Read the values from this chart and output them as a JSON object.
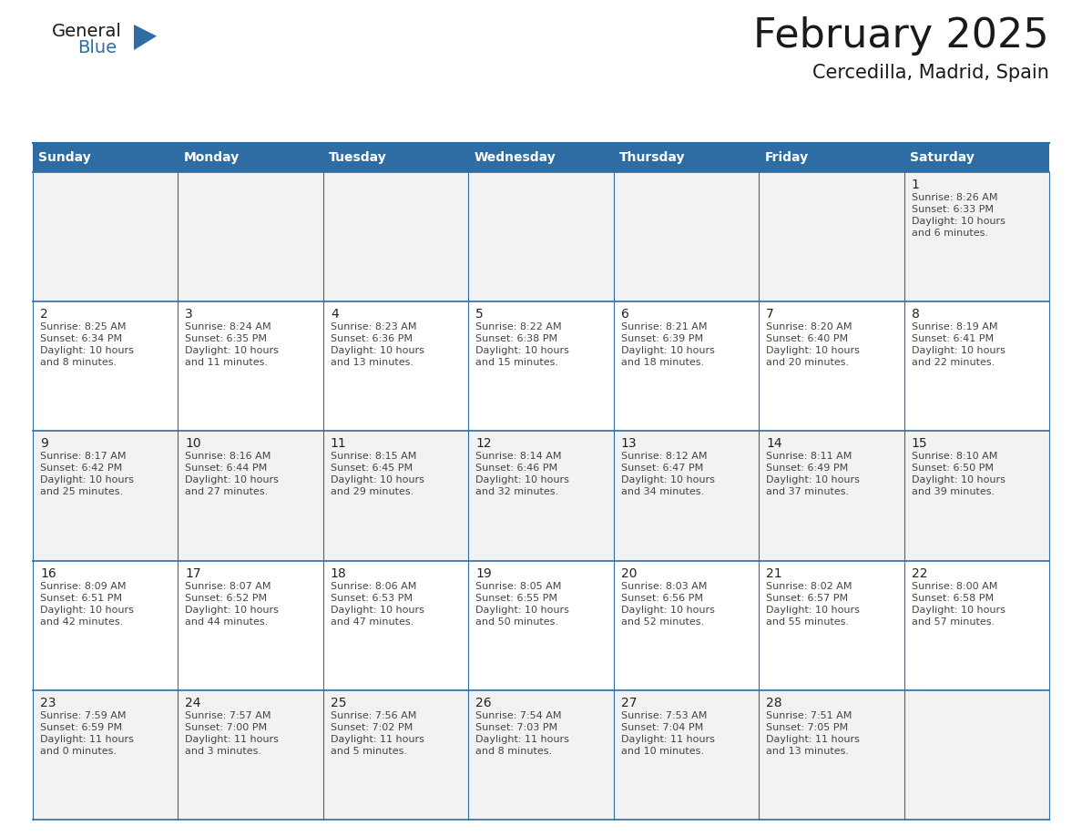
{
  "title": "February 2025",
  "subtitle": "Cercedilla, Madrid, Spain",
  "header_bg": "#2E6DA4",
  "header_text": "#FFFFFF",
  "border_color": "#2E6DA4",
  "cell_bg_light": "#F2F2F2",
  "cell_bg_white": "#FFFFFF",
  "day_names": [
    "Sunday",
    "Monday",
    "Tuesday",
    "Wednesday",
    "Thursday",
    "Friday",
    "Saturday"
  ],
  "days": [
    {
      "day": 1,
      "col": 6,
      "row": 0,
      "sunrise": "8:26 AM",
      "sunset": "6:33 PM",
      "daylight": "10 hours and 6 minutes."
    },
    {
      "day": 2,
      "col": 0,
      "row": 1,
      "sunrise": "8:25 AM",
      "sunset": "6:34 PM",
      "daylight": "10 hours and 8 minutes."
    },
    {
      "day": 3,
      "col": 1,
      "row": 1,
      "sunrise": "8:24 AM",
      "sunset": "6:35 PM",
      "daylight": "10 hours and 11 minutes."
    },
    {
      "day": 4,
      "col": 2,
      "row": 1,
      "sunrise": "8:23 AM",
      "sunset": "6:36 PM",
      "daylight": "10 hours and 13 minutes."
    },
    {
      "day": 5,
      "col": 3,
      "row": 1,
      "sunrise": "8:22 AM",
      "sunset": "6:38 PM",
      "daylight": "10 hours and 15 minutes."
    },
    {
      "day": 6,
      "col": 4,
      "row": 1,
      "sunrise": "8:21 AM",
      "sunset": "6:39 PM",
      "daylight": "10 hours and 18 minutes."
    },
    {
      "day": 7,
      "col": 5,
      "row": 1,
      "sunrise": "8:20 AM",
      "sunset": "6:40 PM",
      "daylight": "10 hours and 20 minutes."
    },
    {
      "day": 8,
      "col": 6,
      "row": 1,
      "sunrise": "8:19 AM",
      "sunset": "6:41 PM",
      "daylight": "10 hours and 22 minutes."
    },
    {
      "day": 9,
      "col": 0,
      "row": 2,
      "sunrise": "8:17 AM",
      "sunset": "6:42 PM",
      "daylight": "10 hours and 25 minutes."
    },
    {
      "day": 10,
      "col": 1,
      "row": 2,
      "sunrise": "8:16 AM",
      "sunset": "6:44 PM",
      "daylight": "10 hours and 27 minutes."
    },
    {
      "day": 11,
      "col": 2,
      "row": 2,
      "sunrise": "8:15 AM",
      "sunset": "6:45 PM",
      "daylight": "10 hours and 29 minutes."
    },
    {
      "day": 12,
      "col": 3,
      "row": 2,
      "sunrise": "8:14 AM",
      "sunset": "6:46 PM",
      "daylight": "10 hours and 32 minutes."
    },
    {
      "day": 13,
      "col": 4,
      "row": 2,
      "sunrise": "8:12 AM",
      "sunset": "6:47 PM",
      "daylight": "10 hours and 34 minutes."
    },
    {
      "day": 14,
      "col": 5,
      "row": 2,
      "sunrise": "8:11 AM",
      "sunset": "6:49 PM",
      "daylight": "10 hours and 37 minutes."
    },
    {
      "day": 15,
      "col": 6,
      "row": 2,
      "sunrise": "8:10 AM",
      "sunset": "6:50 PM",
      "daylight": "10 hours and 39 minutes."
    },
    {
      "day": 16,
      "col": 0,
      "row": 3,
      "sunrise": "8:09 AM",
      "sunset": "6:51 PM",
      "daylight": "10 hours and 42 minutes."
    },
    {
      "day": 17,
      "col": 1,
      "row": 3,
      "sunrise": "8:07 AM",
      "sunset": "6:52 PM",
      "daylight": "10 hours and 44 minutes."
    },
    {
      "day": 18,
      "col": 2,
      "row": 3,
      "sunrise": "8:06 AM",
      "sunset": "6:53 PM",
      "daylight": "10 hours and 47 minutes."
    },
    {
      "day": 19,
      "col": 3,
      "row": 3,
      "sunrise": "8:05 AM",
      "sunset": "6:55 PM",
      "daylight": "10 hours and 50 minutes."
    },
    {
      "day": 20,
      "col": 4,
      "row": 3,
      "sunrise": "8:03 AM",
      "sunset": "6:56 PM",
      "daylight": "10 hours and 52 minutes."
    },
    {
      "day": 21,
      "col": 5,
      "row": 3,
      "sunrise": "8:02 AM",
      "sunset": "6:57 PM",
      "daylight": "10 hours and 55 minutes."
    },
    {
      "day": 22,
      "col": 6,
      "row": 3,
      "sunrise": "8:00 AM",
      "sunset": "6:58 PM",
      "daylight": "10 hours and 57 minutes."
    },
    {
      "day": 23,
      "col": 0,
      "row": 4,
      "sunrise": "7:59 AM",
      "sunset": "6:59 PM",
      "daylight": "11 hours and 0 minutes."
    },
    {
      "day": 24,
      "col": 1,
      "row": 4,
      "sunrise": "7:57 AM",
      "sunset": "7:00 PM",
      "daylight": "11 hours and 3 minutes."
    },
    {
      "day": 25,
      "col": 2,
      "row": 4,
      "sunrise": "7:56 AM",
      "sunset": "7:02 PM",
      "daylight": "11 hours and 5 minutes."
    },
    {
      "day": 26,
      "col": 3,
      "row": 4,
      "sunrise": "7:54 AM",
      "sunset": "7:03 PM",
      "daylight": "11 hours and 8 minutes."
    },
    {
      "day": 27,
      "col": 4,
      "row": 4,
      "sunrise": "7:53 AM",
      "sunset": "7:04 PM",
      "daylight": "11 hours and 10 minutes."
    },
    {
      "day": 28,
      "col": 5,
      "row": 4,
      "sunrise": "7:51 AM",
      "sunset": "7:05 PM",
      "daylight": "11 hours and 13 minutes."
    }
  ],
  "num_rows": 5,
  "logo_text1": "General",
  "logo_text2": "Blue",
  "logo_color1": "#1a1a1a",
  "logo_color2": "#2E6DA4",
  "logo_triangle_color": "#2E6DA4",
  "title_fontsize": 32,
  "subtitle_fontsize": 15,
  "header_fontsize": 10,
  "daynum_fontsize": 10,
  "info_fontsize": 8
}
